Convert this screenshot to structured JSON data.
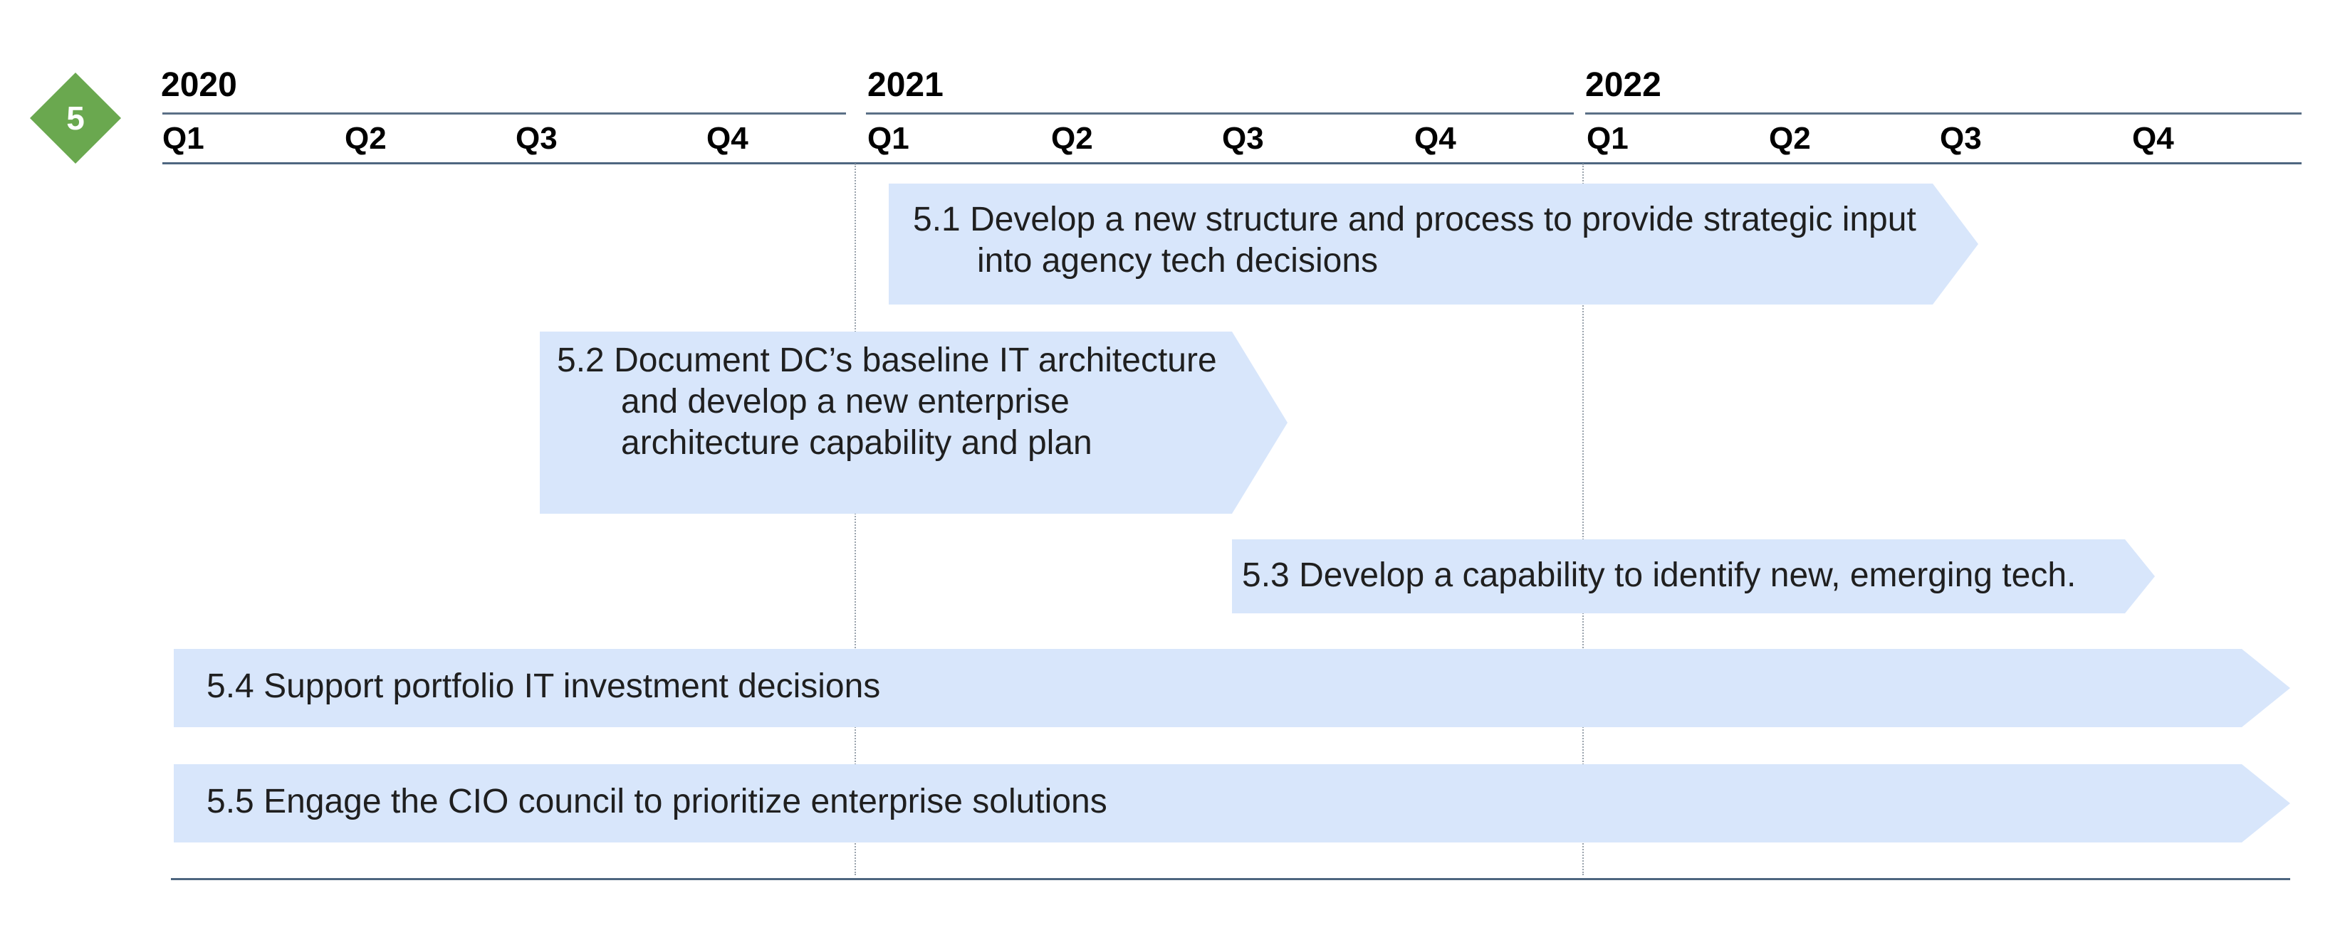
{
  "badge": {
    "number": "5",
    "color": "#6aa84f"
  },
  "timeline": {
    "years": [
      "2020",
      "2021",
      "2022"
    ],
    "quarters": [
      "Q1",
      "Q2",
      "Q3",
      "Q4",
      "Q1",
      "Q2",
      "Q3",
      "Q4",
      "Q1",
      "Q2",
      "Q3",
      "Q4"
    ]
  },
  "tasks": [
    {
      "label": "5.1 Develop a new structure and process to provide strategic input into agency tech decisions",
      "start": "2021 Q1",
      "end": "2022 Q3"
    },
    {
      "label": "5.2 Document DC’s baseline IT architecture and develop a new enterprise architecture capability and plan",
      "start": "2020 Q3",
      "end": "2021 Q3"
    },
    {
      "label": "5.3 Develop a capability to identify new, emerging tech.",
      "start": "2021 Q3",
      "end": "2022 Q4"
    },
    {
      "label": "5.4 Support portfolio IT investment decisions",
      "start": "2020 Q1",
      "end": "2022 Q4"
    },
    {
      "label": "5.5 Engage the CIO council to prioritize enterprise solutions",
      "start": "2020 Q1",
      "end": "2022 Q4"
    }
  ],
  "colors": {
    "bar": "#d8e6fb",
    "rule": "#4e6680",
    "badge": "#6aa84f"
  }
}
